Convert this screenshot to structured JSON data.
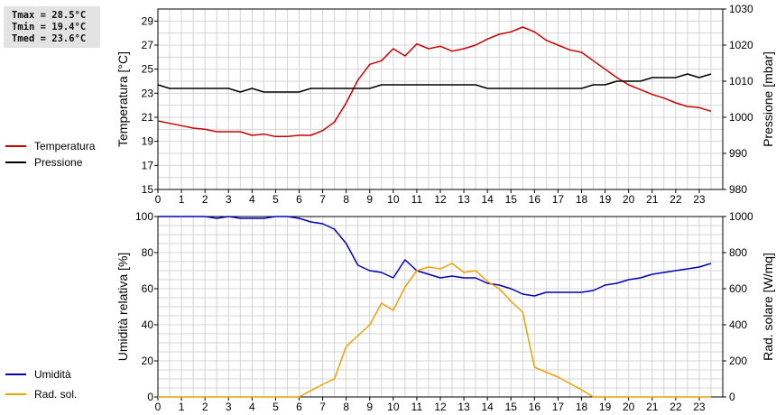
{
  "stats": {
    "tmax": "Tmax = 28.5°C",
    "tmin": "Tmin = 19.4°C",
    "tmed": "Tmed = 23.6°C"
  },
  "colors": {
    "temperature": "#cc0000",
    "pressure": "#000000",
    "humidity": "#0000bb",
    "radiation": "#f0a000",
    "grid": "#d4d4d4"
  },
  "chart_data": [
    {
      "type": "line",
      "ylabel": "Temperatura [°C]",
      "y2label": "Pressione [mbar]",
      "xlim": [
        0,
        24
      ],
      "xticks": [
        "0",
        "1",
        "2",
        "3",
        "4",
        "5",
        "6",
        "7",
        "8",
        "9",
        "10",
        "11",
        "12",
        "13",
        "14",
        "15",
        "16",
        "17",
        "18",
        "19",
        "20",
        "21",
        "22",
        "23"
      ],
      "ylim": [
        15,
        30
      ],
      "yticks": [
        "15",
        "17",
        "19",
        "21",
        "23",
        "25",
        "27",
        "29"
      ],
      "y2lim": [
        980,
        1030
      ],
      "y2ticks": [
        "980",
        "990",
        "1000",
        "1010",
        "1020",
        "1030"
      ],
      "grid": true,
      "legend_position": "left",
      "series": [
        {
          "name": "Temperatura",
          "axis": "left",
          "color": "#cc0000",
          "x": [
            0,
            0.5,
            1,
            1.5,
            2,
            2.5,
            3,
            3.5,
            4,
            4.5,
            5,
            5.5,
            6,
            6.5,
            7,
            7.5,
            8,
            8.5,
            9,
            9.5,
            10,
            10.5,
            11,
            11.5,
            12,
            12.5,
            13,
            13.5,
            14,
            14.5,
            15,
            15.5,
            16,
            16.5,
            17,
            17.5,
            18,
            18.5,
            19,
            19.5,
            20,
            20.5,
            21,
            21.5,
            22,
            22.5,
            23,
            23.5
          ],
          "values": [
            20.7,
            20.5,
            20.3,
            20.1,
            20.0,
            19.8,
            19.8,
            19.8,
            19.5,
            19.6,
            19.4,
            19.4,
            19.5,
            19.5,
            19.9,
            20.6,
            22.2,
            24.1,
            25.4,
            25.7,
            26.7,
            26.1,
            27.1,
            26.7,
            26.9,
            26.5,
            26.7,
            27.0,
            27.5,
            27.9,
            28.1,
            28.5,
            28.1,
            27.4,
            27.0,
            26.6,
            26.4,
            25.7,
            25.0,
            24.3,
            23.7,
            23.3,
            22.9,
            22.6,
            22.2,
            21.9,
            21.8,
            21.5
          ]
        },
        {
          "name": "Pressione",
          "axis": "right",
          "color": "#000000",
          "x": [
            0,
            0.5,
            1,
            1.5,
            2,
            2.5,
            3,
            3.5,
            4,
            4.5,
            5,
            5.5,
            6,
            6.5,
            7,
            7.5,
            8,
            8.5,
            9,
            9.5,
            10,
            10.5,
            11,
            11.5,
            12,
            12.5,
            13,
            13.5,
            14,
            14.5,
            15,
            15.5,
            16,
            16.5,
            17,
            17.5,
            18,
            18.5,
            19,
            19.5,
            20,
            20.5,
            21,
            21.5,
            22,
            22.5,
            23,
            23.5
          ],
          "values": [
            1009,
            1008,
            1008,
            1008,
            1008,
            1008,
            1008,
            1007,
            1008,
            1007,
            1007,
            1007,
            1007,
            1008,
            1008,
            1008,
            1008,
            1008,
            1008,
            1009,
            1009,
            1009,
            1009,
            1009,
            1009,
            1009,
            1009,
            1009,
            1008,
            1008,
            1008,
            1008,
            1008,
            1008,
            1008,
            1008,
            1008,
            1009,
            1009,
            1010,
            1010,
            1010,
            1011,
            1011,
            1011,
            1012,
            1011,
            1012
          ]
        }
      ]
    },
    {
      "type": "line",
      "ylabel": "Umidità relativa [%]",
      "y2label": "Rad. solare [W/mq]",
      "xlim": [
        0,
        24
      ],
      "xticks": [
        "0",
        "1",
        "2",
        "3",
        "4",
        "5",
        "6",
        "7",
        "8",
        "9",
        "10",
        "11",
        "12",
        "13",
        "14",
        "15",
        "16",
        "17",
        "18",
        "19",
        "20",
        "21",
        "22",
        "23"
      ],
      "ylim": [
        0,
        100
      ],
      "yticks": [
        "0",
        "20",
        "40",
        "60",
        "80",
        "100"
      ],
      "y2lim": [
        0,
        1000
      ],
      "y2ticks": [
        "0",
        "200",
        "400",
        "600",
        "800",
        "1000"
      ],
      "grid": true,
      "legend_position": "left",
      "series": [
        {
          "name": "Umidità",
          "axis": "left",
          "color": "#0000bb",
          "x": [
            0,
            0.5,
            1,
            1.5,
            2,
            2.5,
            3,
            3.5,
            4,
            4.5,
            5,
            5.5,
            6,
            6.5,
            7,
            7.5,
            8,
            8.5,
            9,
            9.5,
            10,
            10.5,
            11,
            11.5,
            12,
            12.5,
            13,
            13.5,
            14,
            14.5,
            15,
            15.5,
            16,
            16.5,
            17,
            17.5,
            18,
            18.5,
            19,
            19.5,
            20,
            20.5,
            21,
            21.5,
            22,
            22.5,
            23,
            23.5
          ],
          "values": [
            100,
            100,
            100,
            100,
            100,
            99,
            100,
            99,
            99,
            99,
            100,
            100,
            99,
            97,
            96,
            93,
            85,
            73,
            70,
            69,
            66,
            76,
            70,
            68,
            66,
            67,
            66,
            66,
            63,
            62,
            60,
            57,
            56,
            58,
            58,
            58,
            58,
            59,
            62,
            63,
            65,
            66,
            68,
            69,
            70,
            71,
            72,
            74
          ]
        },
        {
          "name": "Rad. sol.",
          "axis": "right",
          "color": "#f0a000",
          "x": [
            0,
            1,
            2,
            3,
            4,
            5,
            6,
            6.5,
            7,
            7.5,
            8,
            8.5,
            9,
            9.5,
            10,
            10.5,
            11,
            11.5,
            12,
            12.5,
            13,
            13.5,
            14,
            14.5,
            15,
            15.5,
            16,
            17,
            18,
            18.5,
            19,
            20,
            21,
            22,
            23,
            23.5
          ],
          "values": [
            0,
            0,
            0,
            0,
            0,
            0,
            0,
            35,
            70,
            100,
            280,
            340,
            400,
            520,
            480,
            610,
            700,
            720,
            710,
            740,
            690,
            700,
            640,
            600,
            530,
            470,
            165,
            110,
            40,
            0,
            0,
            0,
            0,
            0,
            0,
            0
          ]
        }
      ]
    }
  ]
}
